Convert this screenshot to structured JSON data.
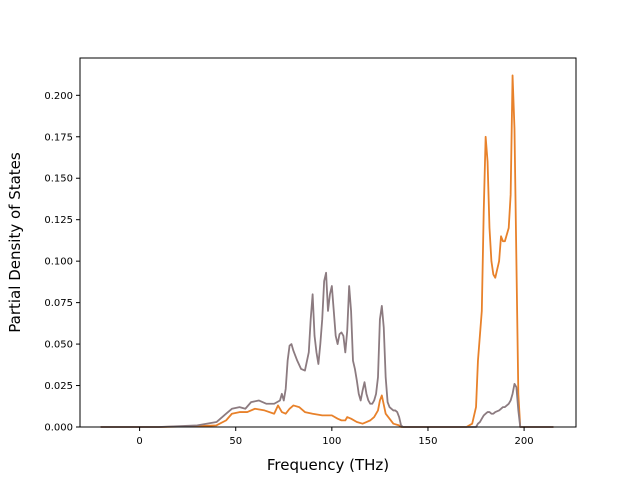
{
  "chart_data": {
    "type": "line",
    "title": "",
    "xlabel": "Frequency (THz)",
    "ylabel": "Partial Density of States",
    "xlim": [
      -31,
      227
    ],
    "ylim": [
      0,
      0.2225
    ],
    "xticks": [
      0,
      50,
      100,
      150,
      200
    ],
    "xtick_labels": [
      "0",
      "50",
      "100",
      "150",
      "200"
    ],
    "yticks": [
      0,
      0.025,
      0.05,
      0.075,
      0.1,
      0.125,
      0.15,
      0.175,
      0.2
    ],
    "ytick_labels": [
      "0.000",
      "0.025",
      "0.050",
      "0.075",
      "0.100",
      "0.125",
      "0.150",
      "0.175",
      "0.200"
    ],
    "grid": false,
    "legend": "none",
    "series": [
      {
        "color": "#e8812a",
        "x": [
          -20,
          10,
          30,
          40,
          45,
          48,
          52,
          56,
          60,
          65,
          70,
          72,
          74,
          76,
          78,
          80,
          83,
          86,
          90,
          95,
          100,
          103,
          105,
          107,
          108,
          110,
          113,
          116,
          118,
          120,
          122,
          124,
          125,
          126,
          128,
          132,
          135,
          136,
          138,
          150,
          170,
          173,
          175,
          176,
          178,
          179,
          180,
          181,
          182,
          183,
          184,
          185,
          187,
          188,
          189,
          190,
          192,
          193,
          194,
          195,
          196,
          197,
          198,
          200,
          215
        ],
        "y": [
          0,
          0,
          0.0005,
          0.001,
          0.004,
          0.008,
          0.009,
          0.009,
          0.011,
          0.01,
          0.008,
          0.013,
          0.009,
          0.008,
          0.011,
          0.013,
          0.012,
          0.009,
          0.008,
          0.007,
          0.007,
          0.005,
          0.004,
          0.004,
          0.006,
          0.005,
          0.003,
          0.002,
          0.003,
          0.004,
          0.006,
          0.01,
          0.016,
          0.019,
          0.008,
          0.002,
          0.001,
          0,
          0,
          0,
          0,
          0.002,
          0.012,
          0.04,
          0.07,
          0.13,
          0.175,
          0.16,
          0.12,
          0.1,
          0.092,
          0.09,
          0.1,
          0.115,
          0.112,
          0.112,
          0.12,
          0.14,
          0.212,
          0.18,
          0.1,
          0.02,
          0,
          0,
          0
        ]
      },
      {
        "color": "#8c7b80",
        "x": [
          -20,
          10,
          30,
          40,
          45,
          48,
          52,
          55,
          58,
          62,
          66,
          70,
          73,
          74,
          75,
          76,
          77,
          78,
          79,
          80,
          82,
          84,
          86,
          88,
          89,
          90,
          91,
          92,
          93,
          94,
          95,
          96,
          97,
          98,
          99,
          100,
          101,
          102,
          103,
          104,
          105,
          106,
          107,
          108,
          109,
          110,
          111,
          112,
          113,
          114,
          115,
          116,
          117,
          118,
          119,
          120,
          121,
          122,
          123,
          124,
          125,
          126,
          127,
          128,
          129,
          130,
          131,
          132,
          133,
          134,
          135,
          136,
          137,
          140,
          150,
          170,
          175,
          176,
          177,
          178,
          179,
          180,
          181,
          182,
          183,
          184,
          185,
          187,
          188,
          189,
          190,
          191,
          192,
          193,
          194,
          195,
          196,
          197,
          198,
          200,
          215
        ],
        "y": [
          0,
          0,
          0.001,
          0.003,
          0.008,
          0.011,
          0.012,
          0.011,
          0.015,
          0.016,
          0.014,
          0.014,
          0.016,
          0.02,
          0.016,
          0.023,
          0.04,
          0.049,
          0.05,
          0.046,
          0.04,
          0.035,
          0.034,
          0.045,
          0.065,
          0.08,
          0.055,
          0.045,
          0.038,
          0.05,
          0.065,
          0.088,
          0.093,
          0.07,
          0.08,
          0.085,
          0.07,
          0.055,
          0.05,
          0.056,
          0.057,
          0.055,
          0.045,
          0.058,
          0.085,
          0.07,
          0.04,
          0.035,
          0.028,
          0.02,
          0.016,
          0.022,
          0.027,
          0.02,
          0.016,
          0.014,
          0.014,
          0.016,
          0.02,
          0.03,
          0.065,
          0.073,
          0.06,
          0.03,
          0.015,
          0.012,
          0.011,
          0.01,
          0.01,
          0.009,
          0.006,
          0.001,
          0,
          0,
          0,
          0,
          0,
          0.002,
          0.003,
          0.005,
          0.007,
          0.008,
          0.009,
          0.009,
          0.008,
          0.008,
          0.009,
          0.01,
          0.011,
          0.012,
          0.012,
          0.013,
          0.014,
          0.016,
          0.02,
          0.026,
          0.024,
          0.01,
          0,
          0,
          0
        ]
      }
    ]
  }
}
